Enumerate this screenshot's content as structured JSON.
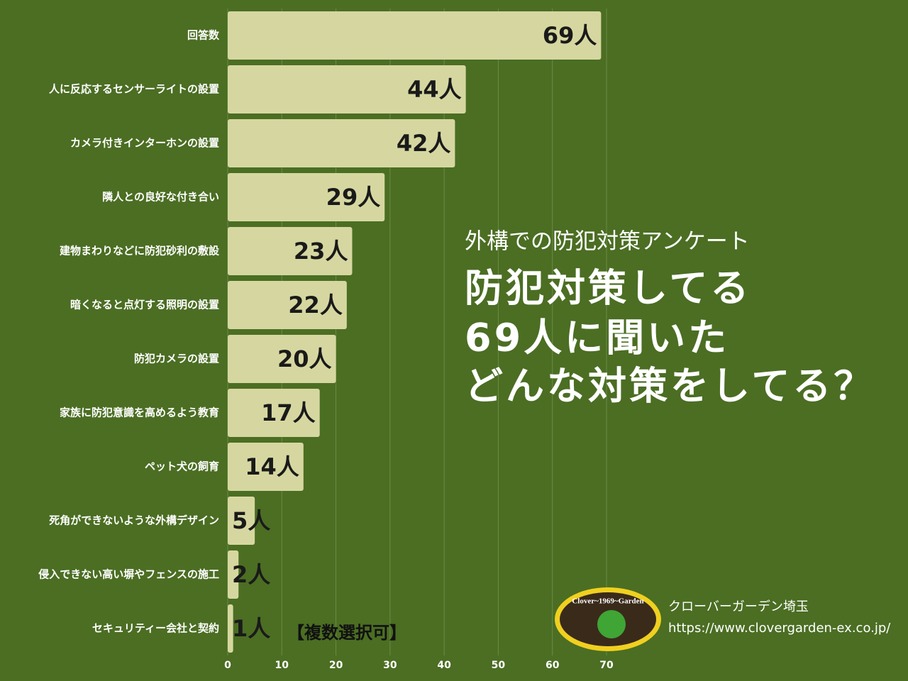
{
  "chart_data": {
    "type": "bar",
    "orientation": "horizontal",
    "subtitle": "外構での防犯対策アンケート",
    "title_lines": [
      "防犯対策してる",
      "69人に聞いた",
      "どんな対策をしてる？"
    ],
    "note": "【複数選択可】",
    "categories": [
      "回答数",
      "人に反応するセンサーライトの設置",
      "カメラ付きインターホンの設置",
      "隣人との良好な付き合い",
      "建物まわりなどに防犯砂利の敷設",
      "暗くなると点灯する照明の設置",
      "防犯カメラの設置",
      "家族に防犯意識を高めるよう教育",
      "ペット犬の飼育",
      "死角ができないような外構デザイン",
      "侵入できない高い塀やフェンスの施工",
      "セキュリティー会社と契約"
    ],
    "values": [
      69,
      44,
      42,
      29,
      23,
      22,
      20,
      17,
      14,
      5,
      2,
      1
    ],
    "value_labels": [
      "69人",
      "44人",
      "42人",
      "29人",
      "23人",
      "22人",
      "20人",
      "17人",
      "14人",
      "5人",
      "2人",
      "1人"
    ],
    "color": "#d6d7a0",
    "xlim": [
      0,
      70
    ],
    "xticks": [
      0,
      10,
      20,
      30,
      40,
      50,
      60,
      70
    ],
    "grid": true,
    "logo_text": "Clover~1969~Garden",
    "company": "クローバーガーデン埼玉",
    "url": "https://www.clovergarden-ex.co.jp/"
  }
}
